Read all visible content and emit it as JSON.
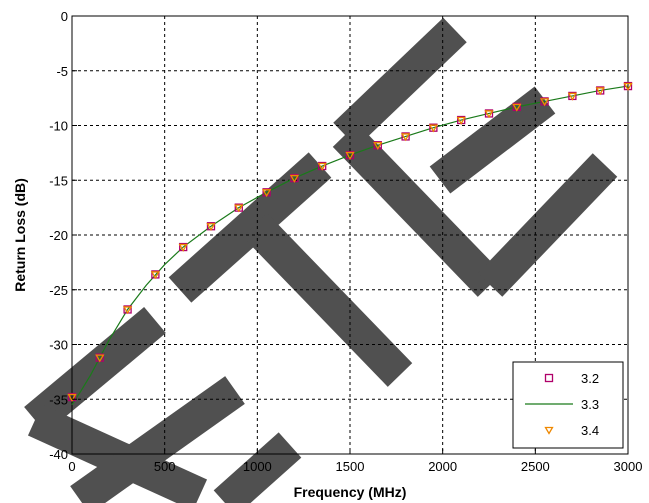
{
  "chart_data": {
    "type": "line",
    "xlabel": "Frequency (MHz)",
    "ylabel": "Return Loss (dB)",
    "xlim": [
      0,
      3000
    ],
    "ylim": [
      -40,
      0
    ],
    "x_ticks": [
      0,
      500,
      1000,
      1500,
      2000,
      2500,
      3000
    ],
    "y_ticks": [
      0,
      -5,
      -10,
      -15,
      -20,
      -25,
      -30,
      -35,
      -40
    ],
    "grid": true,
    "legend_position": "bottom-right",
    "series": [
      {
        "name": "3.2",
        "style": "square-markers",
        "color": "#b0006a",
        "x": [
          0,
          150,
          300,
          450,
          600,
          750,
          900,
          1050,
          1200,
          1350,
          1500,
          1650,
          1800,
          1950,
          2100,
          2250,
          2400,
          2550,
          2700,
          2850,
          3000
        ],
        "y": [
          -34.8,
          -31.2,
          -26.8,
          -23.6,
          -21.1,
          -19.2,
          -17.5,
          -16.1,
          -14.8,
          -13.7,
          -12.7,
          -11.8,
          -11.0,
          -10.2,
          -9.5,
          -8.9,
          -8.3,
          -7.8,
          -7.3,
          -6.8,
          -6.4
        ]
      },
      {
        "name": "3.3",
        "style": "line",
        "color": "#1a7a1a",
        "x": [
          0,
          50,
          100,
          150,
          200,
          250,
          300,
          400,
          500,
          600,
          750,
          900,
          1050,
          1200,
          1350,
          1500,
          1650,
          1800,
          1950,
          2100,
          2250,
          2400,
          2550,
          2700,
          2850,
          3000
        ],
        "y": [
          -35.5,
          -34.2,
          -32.8,
          -31.2,
          -29.6,
          -28.2,
          -26.8,
          -24.6,
          -22.7,
          -21.1,
          -19.2,
          -17.5,
          -16.1,
          -14.8,
          -13.7,
          -12.7,
          -11.8,
          -11.0,
          -10.2,
          -9.5,
          -8.9,
          -8.3,
          -7.8,
          -7.3,
          -6.8,
          -6.4
        ]
      },
      {
        "name": "3.4",
        "style": "triangle-markers",
        "color": "#ee8800",
        "x": [
          0,
          150,
          300,
          450,
          600,
          750,
          900,
          1050,
          1200,
          1350,
          1500,
          1650,
          1800,
          1950,
          2100,
          2250,
          2400,
          2550,
          2700,
          2850,
          3000
        ],
        "y": [
          -34.8,
          -31.2,
          -26.8,
          -23.6,
          -21.1,
          -19.2,
          -17.5,
          -16.1,
          -14.8,
          -13.7,
          -12.7,
          -11.8,
          -11.0,
          -10.2,
          -9.5,
          -8.9,
          -8.3,
          -7.8,
          -7.3,
          -6.8,
          -6.4
        ]
      }
    ],
    "watermark": {
      "text": "ETE",
      "color": "#505050"
    }
  }
}
